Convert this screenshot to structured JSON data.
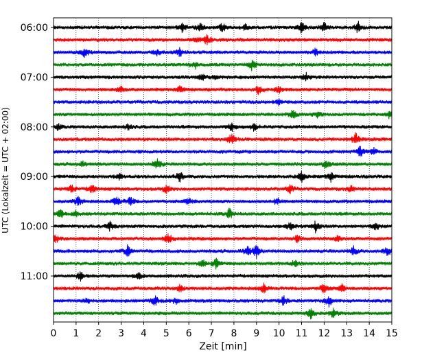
{
  "chart_data": {
    "type": "line",
    "title": "",
    "xlabel": "Zeit  [min]",
    "ylabel": "UTC (Lokalzeit = UTC + 02:00)",
    "xlim": [
      0,
      15
    ],
    "x_ticks": [
      0,
      1,
      2,
      3,
      4,
      5,
      6,
      7,
      8,
      9,
      10,
      11,
      12,
      13,
      14,
      15
    ],
    "y_tick_labels": [
      "06:00",
      "07:00",
      "08:00",
      "09:00",
      "10:00",
      "11:00"
    ],
    "row_interval_min": 15,
    "start_time": "06:00",
    "grid": "vertical dotted",
    "colors": [
      "#000000",
      "#ff0000",
      "#0000ff",
      "#008000"
    ],
    "rows": [
      {
        "start": "06:00",
        "color": "#000000",
        "events": [
          [
            11.0,
            1.0
          ],
          [
            12.0,
            0.8
          ],
          [
            13.5,
            1.0
          ],
          [
            7.5,
            0.8
          ],
          [
            5.7,
            0.7
          ],
          [
            8.5,
            0.6
          ],
          [
            6.5,
            0.6
          ]
        ]
      },
      {
        "start": "06:15",
        "color": "#ff0000",
        "events": [
          [
            6.8,
            0.8
          ],
          [
            6.4,
            0.6
          ]
        ]
      },
      {
        "start": "06:30",
        "color": "#0000ff",
        "events": [
          [
            1.4,
            1.0
          ],
          [
            5.6,
            0.7
          ],
          [
            11.6,
            0.6
          ],
          [
            4.6,
            0.5
          ]
        ]
      },
      {
        "start": "06:45",
        "color": "#008000",
        "events": [
          [
            8.8,
            0.9
          ],
          [
            6.3,
            0.5
          ]
        ]
      },
      {
        "start": "07:00",
        "color": "#000000",
        "events": [
          [
            11.2,
            0.7
          ],
          [
            6.6,
            0.5
          ],
          [
            7.2,
            0.5
          ]
        ]
      },
      {
        "start": "07:15",
        "color": "#ff0000",
        "events": [
          [
            9.1,
            0.8
          ],
          [
            5.6,
            0.6
          ],
          [
            3.0,
            0.5
          ],
          [
            10.0,
            0.5
          ]
        ]
      },
      {
        "start": "07:30",
        "color": "#0000ff",
        "events": [
          [
            10.0,
            0.4
          ]
        ]
      },
      {
        "start": "07:45",
        "color": "#008000",
        "events": [
          [
            10.6,
            0.8
          ],
          [
            14.9,
            0.6
          ],
          [
            11.7,
            0.5
          ]
        ]
      },
      {
        "start": "08:00",
        "color": "#000000",
        "events": [
          [
            7.9,
            0.8
          ],
          [
            8.9,
            0.6
          ],
          [
            3.3,
            0.5
          ],
          [
            0.2,
            0.5
          ]
        ]
      },
      {
        "start": "08:15",
        "color": "#ff0000",
        "events": [
          [
            7.9,
            1.0
          ],
          [
            13.4,
            1.0
          ]
        ]
      },
      {
        "start": "08:30",
        "color": "#0000ff",
        "events": [
          [
            13.6,
            0.9
          ],
          [
            14.2,
            0.6
          ]
        ]
      },
      {
        "start": "08:45",
        "color": "#008000",
        "events": [
          [
            4.6,
            1.0
          ],
          [
            12.1,
            0.8
          ],
          [
            1.3,
            0.4
          ]
        ]
      },
      {
        "start": "09:00",
        "color": "#000000",
        "events": [
          [
            5.6,
            1.0
          ],
          [
            11.0,
            1.0
          ],
          [
            12.3,
            0.8
          ],
          [
            2.9,
            0.6
          ]
        ]
      },
      {
        "start": "09:15",
        "color": "#ff0000",
        "events": [
          [
            0.8,
            0.8
          ],
          [
            1.7,
            0.7
          ],
          [
            10.5,
            0.7
          ],
          [
            5.0,
            0.6
          ],
          [
            13.2,
            0.5
          ]
        ]
      },
      {
        "start": "09:30",
        "color": "#0000ff",
        "events": [
          [
            2.8,
            0.9
          ],
          [
            1.1,
            0.8
          ],
          [
            3.4,
            0.8
          ],
          [
            6.0,
            0.6
          ],
          [
            9.9,
            0.6
          ]
        ]
      },
      {
        "start": "09:45",
        "color": "#008000",
        "events": [
          [
            0.3,
            0.8
          ],
          [
            7.8,
            0.9
          ],
          [
            1.0,
            0.6
          ]
        ]
      },
      {
        "start": "10:00",
        "color": "#000000",
        "events": [
          [
            11.6,
            1.0
          ],
          [
            10.5,
            0.8
          ],
          [
            2.5,
            0.7
          ],
          [
            14.3,
            0.6
          ]
        ]
      },
      {
        "start": "10:15",
        "color": "#ff0000",
        "events": [
          [
            5.1,
            0.9
          ],
          [
            0.1,
            0.7
          ],
          [
            12.6,
            0.6
          ],
          [
            10.8,
            0.5
          ]
        ]
      },
      {
        "start": "10:30",
        "color": "#0000ff",
        "events": [
          [
            3.3,
            1.0
          ],
          [
            9.0,
            1.0
          ],
          [
            8.6,
            0.8
          ],
          [
            13.3,
            0.8
          ],
          [
            14.8,
            0.7
          ]
        ]
      },
      {
        "start": "10:45",
        "color": "#008000",
        "events": [
          [
            7.2,
            0.8
          ],
          [
            6.6,
            0.6
          ],
          [
            10.7,
            0.5
          ]
        ]
      },
      {
        "start": "11:00",
        "color": "#000000",
        "events": [
          [
            1.2,
            0.7
          ],
          [
            3.8,
            0.5
          ]
        ]
      },
      {
        "start": "11:15",
        "color": "#ff0000",
        "events": [
          [
            9.3,
            0.9
          ],
          [
            12.0,
            0.9
          ],
          [
            5.6,
            0.6
          ],
          [
            12.8,
            0.6
          ]
        ]
      },
      {
        "start": "11:30",
        "color": "#0000ff",
        "events": [
          [
            12.2,
            1.0
          ],
          [
            4.5,
            0.8
          ],
          [
            10.2,
            0.8
          ],
          [
            5.4,
            0.6
          ],
          [
            1.5,
            0.5
          ]
        ]
      },
      {
        "start": "11:45",
        "color": "#008000",
        "events": [
          [
            11.4,
            1.0
          ],
          [
            12.4,
            0.8
          ]
        ]
      }
    ]
  }
}
